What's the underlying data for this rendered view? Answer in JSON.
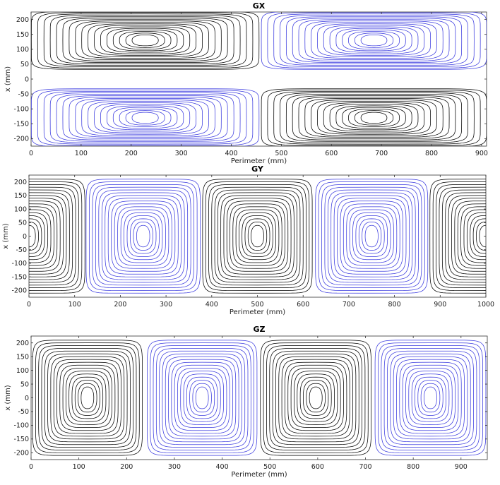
{
  "colors": {
    "positive": "#000000",
    "negative": "#3a3adf",
    "axis": "#333333"
  },
  "chart_data": [
    {
      "type": "contour",
      "title": "GX",
      "xlabel": "Perimeter (mm)",
      "ylabel": "x (mm)",
      "xlim": [
        0,
        910
      ],
      "ylim": [
        -225,
        225
      ],
      "xticks": [
        0,
        100,
        200,
        300,
        400,
        500,
        600,
        700,
        800,
        900
      ],
      "yticks": [
        200,
        150,
        100,
        50,
        0,
        -50,
        -100,
        -150,
        -200
      ],
      "grid": false,
      "lobes": [
        {
          "x_range": [
            0,
            455
          ],
          "y_range": [
            15,
            210
          ],
          "center": [
            228,
            130
          ],
          "polarity": "positive"
        },
        {
          "x_range": [
            460,
            910
          ],
          "y_range": [
            15,
            210
          ],
          "center": [
            685,
            130
          ],
          "polarity": "negative"
        },
        {
          "x_range": [
            0,
            455
          ],
          "y_range": [
            -210,
            -15
          ],
          "center": [
            228,
            -130
          ],
          "polarity": "negative"
        },
        {
          "x_range": [
            460,
            910
          ],
          "y_range": [
            -210,
            -15
          ],
          "center": [
            685,
            -130
          ],
          "polarity": "positive"
        }
      ]
    },
    {
      "type": "contour",
      "title": "GY",
      "xlabel": "Perimeter (mm)",
      "ylabel": "x (mm)",
      "xlim": [
        0,
        1000
      ],
      "ylim": [
        -225,
        225
      ],
      "xticks": [
        0,
        100,
        200,
        300,
        400,
        500,
        600,
        700,
        800,
        900,
        1000
      ],
      "yticks": [
        200,
        150,
        100,
        50,
        0,
        -50,
        -100,
        -150,
        -200
      ],
      "grid": false,
      "lobes": [
        {
          "x_range": [
            -125,
            120
          ],
          "y_range": [
            -210,
            210
          ],
          "center": [
            0,
            0
          ],
          "polarity": "positive"
        },
        {
          "x_range": [
            125,
            375
          ],
          "y_range": [
            -210,
            210
          ],
          "center": [
            250,
            0
          ],
          "polarity": "negative"
        },
        {
          "x_range": [
            380,
            620
          ],
          "y_range": [
            -210,
            210
          ],
          "center": [
            500,
            0
          ],
          "polarity": "positive"
        },
        {
          "x_range": [
            627,
            873
          ],
          "y_range": [
            -210,
            210
          ],
          "center": [
            750,
            0
          ],
          "polarity": "negative"
        },
        {
          "x_range": [
            880,
            1125
          ],
          "y_range": [
            -210,
            210
          ],
          "center": [
            1000,
            0
          ],
          "polarity": "positive"
        }
      ]
    },
    {
      "type": "contour",
      "title": "GZ",
      "xlabel": "Perimeter (mm)",
      "ylabel": "x (mm)",
      "xlim": [
        0,
        955
      ],
      "ylim": [
        -225,
        225
      ],
      "xticks": [
        0,
        100,
        200,
        300,
        400,
        500,
        600,
        700,
        800,
        900
      ],
      "yticks": [
        200,
        150,
        100,
        50,
        0,
        -50,
        -100,
        -150,
        -200
      ],
      "grid": false,
      "lobes": [
        {
          "x_range": [
            5,
            235
          ],
          "y_range": [
            -210,
            210
          ],
          "center": [
            118,
            0
          ],
          "polarity": "positive"
        },
        {
          "x_range": [
            243,
            473
          ],
          "y_range": [
            -210,
            210
          ],
          "center": [
            358,
            0
          ],
          "polarity": "negative"
        },
        {
          "x_range": [
            480,
            712
          ],
          "y_range": [
            -210,
            210
          ],
          "center": [
            596,
            0
          ],
          "polarity": "positive"
        },
        {
          "x_range": [
            720,
            952
          ],
          "y_range": [
            -210,
            210
          ],
          "center": [
            836,
            0
          ],
          "polarity": "negative"
        }
      ]
    }
  ]
}
